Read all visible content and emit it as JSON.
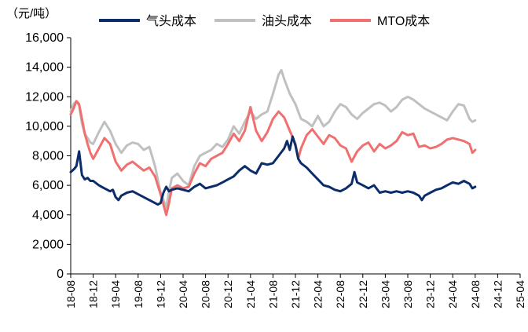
{
  "chart_data": {
    "type": "line",
    "unit_label": "（元/吨）",
    "ylim": [
      0,
      16000
    ],
    "y_ticks": [
      "0",
      "2,000",
      "4,000",
      "6,000",
      "8,000",
      "10,000",
      "12,000",
      "14,000",
      "16,000"
    ],
    "y_tick_values": [
      0,
      2000,
      4000,
      6000,
      8000,
      10000,
      12000,
      14000,
      16000
    ],
    "x_tick_labels": [
      "18-08",
      "18-12",
      "19-04",
      "19-08",
      "19-12",
      "20-04",
      "20-08",
      "20-12",
      "21-04",
      "21-08",
      "21-12",
      "22-04",
      "22-08",
      "22-12",
      "23-04",
      "23-08",
      "23-12",
      "24-04",
      "24-08",
      "24-12",
      "25-04"
    ],
    "x_range": [
      0,
      80
    ],
    "grid": false,
    "legend_position": "top",
    "series": [
      {
        "name": "气头成本",
        "color": "#0b2d6b",
        "points": [
          [
            0,
            6900
          ],
          [
            0.6,
            7100
          ],
          [
            1,
            7300
          ],
          [
            1.5,
            8300
          ],
          [
            2,
            6700
          ],
          [
            2.5,
            6400
          ],
          [
            3,
            6500
          ],
          [
            3.5,
            6300
          ],
          [
            4,
            6300
          ],
          [
            5,
            6000
          ],
          [
            6,
            5800
          ],
          [
            7,
            5600
          ],
          [
            7.5,
            5700
          ],
          [
            8,
            5200
          ],
          [
            8.5,
            5000
          ],
          [
            9,
            5300
          ],
          [
            10,
            5500
          ],
          [
            11,
            5600
          ],
          [
            12,
            5400
          ],
          [
            13,
            5200
          ],
          [
            14,
            5000
          ],
          [
            15,
            4800
          ],
          [
            15.5,
            4700
          ],
          [
            16,
            4800
          ],
          [
            16.5,
            5500
          ],
          [
            17,
            5900
          ],
          [
            17.5,
            5600
          ],
          [
            18,
            5700
          ],
          [
            19,
            5800
          ],
          [
            20,
            5700
          ],
          [
            21,
            5600
          ],
          [
            22,
            5900
          ],
          [
            23,
            6100
          ],
          [
            24,
            5800
          ],
          [
            25,
            5900
          ],
          [
            26,
            6000
          ],
          [
            27,
            6200
          ],
          [
            28,
            6400
          ],
          [
            29,
            6600
          ],
          [
            30,
            7000
          ],
          [
            31,
            7300
          ],
          [
            32,
            7000
          ],
          [
            33,
            6800
          ],
          [
            34,
            7500
          ],
          [
            35,
            7400
          ],
          [
            36,
            7500
          ],
          [
            37,
            8000
          ],
          [
            38,
            8500
          ],
          [
            38.5,
            9000
          ],
          [
            39,
            8400
          ],
          [
            39.5,
            9300
          ],
          [
            40,
            8700
          ],
          [
            40.5,
            7800
          ],
          [
            41,
            7500
          ],
          [
            42,
            7200
          ],
          [
            43,
            6800
          ],
          [
            44,
            6400
          ],
          [
            45,
            6000
          ],
          [
            46,
            5900
          ],
          [
            47,
            5700
          ],
          [
            48,
            5600
          ],
          [
            49,
            5800
          ],
          [
            50,
            6100
          ],
          [
            50.5,
            6900
          ],
          [
            51,
            6200
          ],
          [
            52,
            6000
          ],
          [
            53,
            5800
          ],
          [
            54,
            6000
          ],
          [
            55,
            5500
          ],
          [
            56,
            5600
          ],
          [
            57,
            5500
          ],
          [
            58,
            5600
          ],
          [
            59,
            5500
          ],
          [
            60,
            5600
          ],
          [
            61,
            5500
          ],
          [
            62,
            5300
          ],
          [
            62.5,
            5000
          ],
          [
            63,
            5300
          ],
          [
            64,
            5500
          ],
          [
            65,
            5700
          ],
          [
            66,
            5800
          ],
          [
            67,
            6000
          ],
          [
            68,
            6200
          ],
          [
            69,
            6100
          ],
          [
            70,
            6300
          ],
          [
            70.5,
            6200
          ],
          [
            71,
            6100
          ],
          [
            71.5,
            5800
          ],
          [
            72,
            5900
          ]
        ]
      },
      {
        "name": "油头成本",
        "color": "#c0c0c0",
        "points": [
          [
            0,
            11000
          ],
          [
            0.5,
            11500
          ],
          [
            1,
            11700
          ],
          [
            1.5,
            11400
          ],
          [
            2,
            10200
          ],
          [
            2.5,
            9500
          ],
          [
            3,
            9200
          ],
          [
            3.5,
            8900
          ],
          [
            4,
            8800
          ],
          [
            5,
            9600
          ],
          [
            6,
            10300
          ],
          [
            7,
            9700
          ],
          [
            8,
            8800
          ],
          [
            9,
            8200
          ],
          [
            10,
            8700
          ],
          [
            11,
            8900
          ],
          [
            12,
            8800
          ],
          [
            13,
            8400
          ],
          [
            14,
            8600
          ],
          [
            15,
            7300
          ],
          [
            16,
            5500
          ],
          [
            17,
            4500
          ],
          [
            17.5,
            5600
          ],
          [
            18,
            6500
          ],
          [
            19,
            6800
          ],
          [
            20,
            6300
          ],
          [
            21,
            6000
          ],
          [
            22,
            7300
          ],
          [
            23,
            8000
          ],
          [
            24,
            8200
          ],
          [
            25,
            8400
          ],
          [
            26,
            8800
          ],
          [
            27,
            8600
          ],
          [
            28,
            9100
          ],
          [
            29,
            10000
          ],
          [
            30,
            9500
          ],
          [
            31,
            10300
          ],
          [
            32,
            11000
          ],
          [
            33,
            10500
          ],
          [
            34,
            10800
          ],
          [
            35,
            11000
          ],
          [
            36,
            12200
          ],
          [
            37,
            13500
          ],
          [
            37.5,
            13800
          ],
          [
            38,
            13200
          ],
          [
            39,
            12200
          ],
          [
            40,
            11500
          ],
          [
            41,
            10500
          ],
          [
            42,
            10300
          ],
          [
            43,
            10000
          ],
          [
            44,
            10700
          ],
          [
            45,
            10000
          ],
          [
            46,
            10300
          ],
          [
            47,
            11000
          ],
          [
            48,
            11500
          ],
          [
            49,
            11300
          ],
          [
            50,
            10800
          ],
          [
            51,
            10500
          ],
          [
            52,
            10900
          ],
          [
            53,
            11200
          ],
          [
            54,
            11500
          ],
          [
            55,
            11600
          ],
          [
            56,
            11400
          ],
          [
            57,
            11000
          ],
          [
            58,
            11300
          ],
          [
            59,
            11800
          ],
          [
            60,
            12000
          ],
          [
            61,
            11800
          ],
          [
            62,
            11500
          ],
          [
            63,
            11200
          ],
          [
            64,
            11000
          ],
          [
            65,
            10800
          ],
          [
            66,
            10600
          ],
          [
            67,
            10400
          ],
          [
            68,
            11000
          ],
          [
            69,
            11500
          ],
          [
            70,
            11400
          ],
          [
            71,
            10500
          ],
          [
            71.5,
            10300
          ],
          [
            72,
            10400
          ]
        ]
      },
      {
        "name": "MTO成本",
        "color": "#f07070",
        "points": [
          [
            0,
            10800
          ],
          [
            0.5,
            11200
          ],
          [
            1,
            11700
          ],
          [
            1.5,
            11500
          ],
          [
            2,
            10500
          ],
          [
            2.5,
            9500
          ],
          [
            3,
            8800
          ],
          [
            3.5,
            8200
          ],
          [
            4,
            7800
          ],
          [
            5,
            8500
          ],
          [
            6,
            9200
          ],
          [
            7,
            8800
          ],
          [
            8,
            7600
          ],
          [
            9,
            7000
          ],
          [
            10,
            7400
          ],
          [
            11,
            7600
          ],
          [
            12,
            7300
          ],
          [
            13,
            7000
          ],
          [
            14,
            7200
          ],
          [
            15,
            6600
          ],
          [
            16,
            5400
          ],
          [
            17,
            4000
          ],
          [
            17.5,
            4800
          ],
          [
            18,
            5800
          ],
          [
            19,
            6000
          ],
          [
            20,
            5800
          ],
          [
            21,
            5900
          ],
          [
            22,
            6800
          ],
          [
            23,
            7500
          ],
          [
            24,
            7300
          ],
          [
            25,
            7800
          ],
          [
            26,
            8000
          ],
          [
            27,
            8200
          ],
          [
            28,
            8800
          ],
          [
            29,
            9500
          ],
          [
            30,
            9000
          ],
          [
            31,
            9700
          ],
          [
            32,
            11300
          ],
          [
            33,
            9700
          ],
          [
            34,
            9000
          ],
          [
            35,
            9600
          ],
          [
            36,
            10500
          ],
          [
            37,
            11000
          ],
          [
            38,
            10600
          ],
          [
            39,
            9700
          ],
          [
            40,
            8800
          ],
          [
            40.5,
            7800
          ],
          [
            41,
            8500
          ],
          [
            42,
            9400
          ],
          [
            43,
            9800
          ],
          [
            44,
            9300
          ],
          [
            45,
            8800
          ],
          [
            46,
            9400
          ],
          [
            47,
            9200
          ],
          [
            48,
            8700
          ],
          [
            49,
            8500
          ],
          [
            50,
            7600
          ],
          [
            51,
            8300
          ],
          [
            52,
            8700
          ],
          [
            53,
            8900
          ],
          [
            54,
            8300
          ],
          [
            55,
            8800
          ],
          [
            56,
            8500
          ],
          [
            57,
            8700
          ],
          [
            58,
            9000
          ],
          [
            59,
            9600
          ],
          [
            60,
            9400
          ],
          [
            61,
            9500
          ],
          [
            62,
            8600
          ],
          [
            63,
            8700
          ],
          [
            64,
            8500
          ],
          [
            65,
            8600
          ],
          [
            66,
            8800
          ],
          [
            67,
            9100
          ],
          [
            68,
            9200
          ],
          [
            69,
            9100
          ],
          [
            70,
            9000
          ],
          [
            71,
            8800
          ],
          [
            71.5,
            8200
          ],
          [
            72,
            8400
          ]
        ]
      }
    ]
  }
}
